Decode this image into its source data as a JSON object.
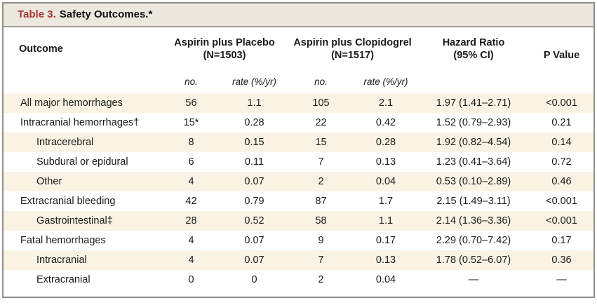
{
  "title": {
    "prefix": "Table 3.",
    "text": "Safety Outcomes.*"
  },
  "header": {
    "outcome": "Outcome",
    "group_placebo": {
      "line1": "Aspirin plus Placebo",
      "line2": "(N=1503)"
    },
    "group_clopidogrel": {
      "line1": "Aspirin plus Clopidogrel",
      "line2": "(N=1517)"
    },
    "hazard_ratio": {
      "line1": "Hazard Ratio",
      "line2": "(95% CI)"
    },
    "p_value": "P Value",
    "sub_no": "no.",
    "sub_rate": "rate (%/yr)"
  },
  "rows": [
    {
      "outcome": "All major hemorrhages",
      "indent": false,
      "placebo_no": "56",
      "placebo_rate": "1.1",
      "clopidogrel_no": "105",
      "clopidogrel_rate": "2.1",
      "hazard_ratio": "1.97 (1.41–2.71)",
      "p_value": "<0.001"
    },
    {
      "outcome": "Intracranial hemorrhages†",
      "indent": false,
      "placebo_no": "15*",
      "placebo_rate": "0.28",
      "clopidogrel_no": "22",
      "clopidogrel_rate": "0.42",
      "hazard_ratio": "1.52 (0.79–2.93)",
      "p_value": "0.21"
    },
    {
      "outcome": "Intracerebral",
      "indent": true,
      "placebo_no": "8",
      "placebo_rate": "0.15",
      "clopidogrel_no": "15",
      "clopidogrel_rate": "0.28",
      "hazard_ratio": "1.92 (0.82–4.54)",
      "p_value": "0.14"
    },
    {
      "outcome": "Subdural or epidural",
      "indent": true,
      "placebo_no": "6",
      "placebo_rate": "0.11",
      "clopidogrel_no": "7",
      "clopidogrel_rate": "0.13",
      "hazard_ratio": "1.23 (0.41–3.64)",
      "p_value": "0.72"
    },
    {
      "outcome": "Other",
      "indent": true,
      "placebo_no": "4",
      "placebo_rate": "0.07",
      "clopidogrel_no": "2",
      "clopidogrel_rate": "0.04",
      "hazard_ratio": "0.53 (0.10–2.89)",
      "p_value": "0.46"
    },
    {
      "outcome": "Extracranial bleeding",
      "indent": false,
      "placebo_no": "42",
      "placebo_rate": "0.79",
      "clopidogrel_no": "87",
      "clopidogrel_rate": "1.7",
      "hazard_ratio": "2.15 (1.49–3.11)",
      "p_value": "<0.001"
    },
    {
      "outcome": "Gastrointestinal‡",
      "indent": true,
      "placebo_no": "28",
      "placebo_rate": "0.52",
      "clopidogrel_no": "58",
      "clopidogrel_rate": "1.1",
      "hazard_ratio": "2.14 (1.36–3.36)",
      "p_value": "<0.001"
    },
    {
      "outcome": "Fatal hemorrhages",
      "indent": false,
      "placebo_no": "4",
      "placebo_rate": "0.07",
      "clopidogrel_no": "9",
      "clopidogrel_rate": "0.17",
      "hazard_ratio": "2.29 (0.70–7.42)",
      "p_value": "0.17"
    },
    {
      "outcome": "Intracranial",
      "indent": true,
      "placebo_no": "4",
      "placebo_rate": "0.07",
      "clopidogrel_no": "7",
      "clopidogrel_rate": "0.13",
      "hazard_ratio": "1.78 (0.52–6.07)",
      "p_value": "0.36"
    },
    {
      "outcome": "Extracranial",
      "indent": true,
      "placebo_no": "0",
      "placebo_rate": "0",
      "clopidogrel_no": "2",
      "clopidogrel_rate": "0.04",
      "hazard_ratio": "—",
      "p_value": "—"
    }
  ],
  "colors": {
    "accent_red": "#A8322E",
    "title_bar_bg": "#ECE8DE",
    "stripe_bg": "#FAF3E4",
    "border_gray": "#8F8E8A",
    "text": "#1A1A1A"
  }
}
